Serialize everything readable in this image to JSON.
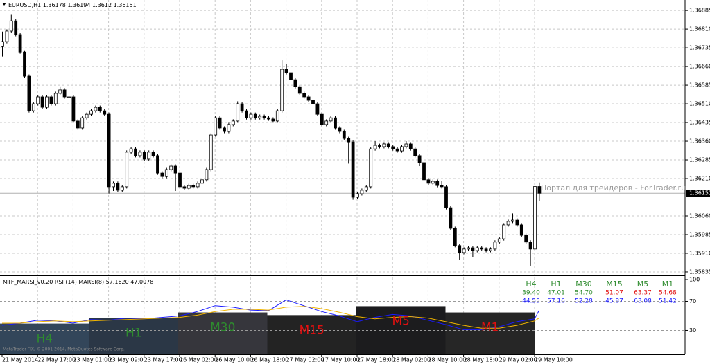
{
  "chart_data": [
    {
      "type": "candlestick",
      "symbol": "EURUSD,H1",
      "open": [
        1.3674,
        1.3676,
        1.36802,
        1.36843,
        1.36788,
        1.36718,
        1.36621,
        1.36482,
        1.3651,
        1.36538,
        1.36496,
        1.36538,
        1.3651,
        1.36552,
        1.36566,
        1.36538,
        1.36538,
        1.36441,
        1.36413,
        1.36454,
        1.36468,
        1.36482,
        1.36496,
        1.36482,
        1.36468,
        1.36177,
        1.36191,
        1.36163,
        1.36177,
        1.36316,
        1.36329,
        1.36302,
        1.36316,
        1.36288,
        1.36316,
        1.36302,
        1.36232,
        1.36218,
        1.36246,
        1.3626,
        1.36232,
        1.36177,
        1.36171,
        1.36182,
        1.36177,
        1.36191,
        1.36205,
        1.36246,
        1.36385,
        1.36454,
        1.36413,
        1.36399,
        1.36427,
        1.36441,
        1.3651,
        1.36482,
        1.36454,
        1.36468,
        1.36454,
        1.3646,
        1.36454,
        1.36449,
        1.36441,
        1.36482,
        1.36649,
        1.36635,
        1.36607,
        1.36579,
        1.36552,
        1.36538,
        1.36524,
        1.3651,
        1.36468,
        1.36427,
        1.36441,
        1.36454,
        1.36413,
        1.36399,
        1.36371,
        1.36357,
        1.36135,
        1.36149,
        1.36163,
        1.36177,
        1.36329,
        1.36343,
        1.36338,
        1.36349,
        1.36338,
        1.36329,
        1.36321,
        1.36338,
        1.36349,
        1.36329,
        1.36302,
        1.36274,
        1.36205,
        1.36191,
        1.36199,
        1.36182,
        1.36177,
        1.36093,
        1.3601,
        1.35941,
        1.35913,
        1.35927,
        1.35932,
        1.35921,
        1.35932,
        1.35927,
        1.35921,
        1.35927,
        1.35955,
        1.35968,
        1.36024,
        1.36038,
        1.36043,
        1.36024,
        1.35982,
        1.35955,
        1.35927,
        1.36178
      ],
      "high": [
        1.368,
        1.36809,
        1.3687,
        1.3685,
        1.36795,
        1.36725,
        1.36628,
        1.36517,
        1.36545,
        1.36545,
        1.36545,
        1.36545,
        1.36559,
        1.3658,
        1.36573,
        1.36545,
        1.36545,
        1.36448,
        1.36461,
        1.36475,
        1.36489,
        1.36503,
        1.36503,
        1.36489,
        1.36475,
        1.36198,
        1.36198,
        1.36184,
        1.36323,
        1.36336,
        1.36336,
        1.36323,
        1.36323,
        1.36323,
        1.36323,
        1.36309,
        1.36239,
        1.36253,
        1.36267,
        1.36267,
        1.36239,
        1.36184,
        1.36189,
        1.36189,
        1.36198,
        1.36212,
        1.36253,
        1.36392,
        1.36461,
        1.36461,
        1.3642,
        1.36434,
        1.36448,
        1.3652,
        1.36517,
        1.36489,
        1.36475,
        1.36475,
        1.36467,
        1.36467,
        1.36461,
        1.36456,
        1.36489,
        1.36685,
        1.3667,
        1.36642,
        1.36614,
        1.36586,
        1.36559,
        1.36545,
        1.36531,
        1.36517,
        1.36475,
        1.36448,
        1.36461,
        1.36461,
        1.3642,
        1.36406,
        1.36378,
        1.36364,
        1.36156,
        1.3617,
        1.36184,
        1.36336,
        1.3636,
        1.3635,
        1.36356,
        1.36356,
        1.36345,
        1.36336,
        1.36345,
        1.3636,
        1.36356,
        1.36336,
        1.36309,
        1.36281,
        1.36212,
        1.36206,
        1.36206,
        1.362,
        1.36184,
        1.361,
        1.36017,
        1.35948,
        1.35934,
        1.35939,
        1.35939,
        1.35939,
        1.35939,
        1.35934,
        1.35934,
        1.35962,
        1.35975,
        1.36031,
        1.36045,
        1.3607,
        1.3605,
        1.36031,
        1.35989,
        1.35962,
        1.362,
        1.36194
      ],
      "low": [
        1.367,
        1.36753,
        1.36795,
        1.36781,
        1.36711,
        1.36614,
        1.36475,
        1.36475,
        1.36503,
        1.36489,
        1.36489,
        1.36503,
        1.36503,
        1.36545,
        1.36531,
        1.36531,
        1.36434,
        1.36406,
        1.36406,
        1.36447,
        1.36461,
        1.36475,
        1.36475,
        1.36461,
        1.3615,
        1.3616,
        1.36156,
        1.36156,
        1.3617,
        1.36309,
        1.36295,
        1.36295,
        1.36281,
        1.36281,
        1.36295,
        1.36225,
        1.36211,
        1.36211,
        1.36239,
        1.3616,
        1.3617,
        1.36164,
        1.36164,
        1.3617,
        1.3617,
        1.36184,
        1.36198,
        1.36239,
        1.36378,
        1.36406,
        1.36392,
        1.36392,
        1.3642,
        1.36434,
        1.36475,
        1.36447,
        1.36447,
        1.36447,
        1.36447,
        1.36447,
        1.36442,
        1.36434,
        1.36434,
        1.36475,
        1.36628,
        1.366,
        1.36572,
        1.36545,
        1.36531,
        1.36517,
        1.36503,
        1.36461,
        1.3642,
        1.3642,
        1.36434,
        1.36406,
        1.36392,
        1.36364,
        1.3627,
        1.36125,
        1.36128,
        1.36142,
        1.36156,
        1.3617,
        1.36322,
        1.36331,
        1.36331,
        1.36331,
        1.36322,
        1.36314,
        1.36314,
        1.36331,
        1.36322,
        1.36295,
        1.3626,
        1.36198,
        1.36184,
        1.36184,
        1.36175,
        1.3617,
        1.36086,
        1.36003,
        1.35934,
        1.35885,
        1.35906,
        1.3592,
        1.35895,
        1.35914,
        1.3592,
        1.35914,
        1.35914,
        1.3592,
        1.35948,
        1.35961,
        1.36017,
        1.36031,
        1.36017,
        1.35975,
        1.35948,
        1.3586,
        1.3592,
        1.3612
      ],
      "close": [
        1.3676,
        1.36802,
        1.36843,
        1.36788,
        1.36718,
        1.36621,
        1.36482,
        1.3651,
        1.36538,
        1.36496,
        1.36538,
        1.3651,
        1.36552,
        1.36566,
        1.36538,
        1.36538,
        1.36441,
        1.36413,
        1.36454,
        1.36468,
        1.36482,
        1.36496,
        1.36482,
        1.36468,
        1.36177,
        1.36191,
        1.36163,
        1.36177,
        1.36316,
        1.36329,
        1.36302,
        1.36316,
        1.36288,
        1.36316,
        1.36302,
        1.36232,
        1.36218,
        1.36246,
        1.3626,
        1.36232,
        1.36177,
        1.36171,
        1.36182,
        1.36177,
        1.36191,
        1.36205,
        1.36246,
        1.36385,
        1.36454,
        1.36413,
        1.36399,
        1.36427,
        1.36441,
        1.3651,
        1.36482,
        1.36454,
        1.36468,
        1.36454,
        1.3646,
        1.36454,
        1.36449,
        1.36441,
        1.36482,
        1.36649,
        1.36635,
        1.36607,
        1.36579,
        1.36552,
        1.36538,
        1.36524,
        1.3651,
        1.36468,
        1.36427,
        1.36441,
        1.36454,
        1.36413,
        1.36399,
        1.36371,
        1.36357,
        1.36135,
        1.36149,
        1.36163,
        1.36177,
        1.36329,
        1.36343,
        1.36338,
        1.36349,
        1.36338,
        1.36329,
        1.36321,
        1.36338,
        1.36349,
        1.36329,
        1.36302,
        1.36274,
        1.36205,
        1.36191,
        1.36199,
        1.36182,
        1.36177,
        1.36093,
        1.3601,
        1.35941,
        1.35913,
        1.35927,
        1.35932,
        1.35921,
        1.35932,
        1.35927,
        1.35921,
        1.35927,
        1.35955,
        1.35968,
        1.36024,
        1.36038,
        1.36043,
        1.36024,
        1.35982,
        1.35955,
        1.35927,
        1.36178,
        1.36151
      ],
      "ylim": [
        1.35821,
        1.36927
      ],
      "yticks": [
        {
          "value": 1.36885,
          "label": "1.36885"
        },
        {
          "value": 1.3681,
          "label": "1.36810"
        },
        {
          "value": 1.36735,
          "label": "1.36735"
        },
        {
          "value": 1.3666,
          "label": "1.36660"
        },
        {
          "value": 1.36585,
          "label": "1.36585"
        },
        {
          "value": 1.3651,
          "label": "1.36510"
        },
        {
          "value": 1.36435,
          "label": "1.36435"
        },
        {
          "value": 1.3636,
          "label": "1.36360"
        },
        {
          "value": 1.36285,
          "label": "1.36285"
        },
        {
          "value": 1.3621,
          "label": "1.36210"
        },
        {
          "value": 1.3606,
          "label": "1.36060"
        },
        {
          "value": 1.35985,
          "label": "1.35985"
        },
        {
          "value": 1.3591,
          "label": "1.35910"
        },
        {
          "value": 1.35835,
          "label": "1.35835"
        }
      ],
      "xticks": [
        {
          "value": 0,
          "label": "21 May 2014"
        },
        {
          "value": 8,
          "label": "22 May 17:00"
        },
        {
          "value": 16,
          "label": "23 May 01:00"
        },
        {
          "value": 24,
          "label": "23 May 09:00"
        },
        {
          "value": 32,
          "label": "23 May 17:00"
        },
        {
          "value": 40,
          "label": "26 May 02:00"
        },
        {
          "value": 48,
          "label": "26 May 10:00"
        },
        {
          "value": 56,
          "label": "26 May 18:00"
        },
        {
          "value": 64,
          "label": "27 May 02:00"
        },
        {
          "value": 72,
          "label": "27 May 10:00"
        },
        {
          "value": 80,
          "label": "27 May 18:00"
        },
        {
          "value": 88,
          "label": "28 May 02:00"
        },
        {
          "value": 96,
          "label": "28 May 10:00"
        },
        {
          "value": 104,
          "label": "28 May 18:00"
        },
        {
          "value": 112,
          "label": "29 May 02:00"
        },
        {
          "value": 120,
          "label": "29 May 10:00"
        }
      ],
      "up_color": "#ffffff",
      "down_color": "#000000",
      "grid": true,
      "watermark": "Портал для трейдеров - ForTrader.ru",
      "copyright": "MetaTrader FIX, © 2001-2014, MetaQuotes Software Corp."
    },
    {
      "type": "line",
      "title": "MTF_MARSI_v0.20",
      "header_values": [
        "57.1620",
        "47.0078"
      ],
      "x": [
        0,
        4,
        8,
        12,
        16,
        20,
        24,
        28,
        32,
        36,
        40,
        44,
        48,
        52,
        56,
        60,
        64,
        68,
        72,
        76,
        80,
        84,
        88,
        92,
        96,
        100,
        104,
        108,
        112,
        116,
        120,
        121
      ],
      "series": [
        {
          "name": "RSI (14)",
          "color": "#1a1aff",
          "values": [
            37,
            40,
            44,
            43,
            40,
            45,
            44,
            47,
            46,
            48,
            50,
            56,
            64,
            62,
            58,
            57,
            72,
            64,
            56,
            50,
            42,
            48,
            52,
            50,
            44,
            38,
            31,
            31,
            35,
            42,
            46,
            57.2
          ]
        },
        {
          "name": "MARSI(8)",
          "color": "#f0b400",
          "values": [
            40,
            40,
            42,
            43,
            42,
            43,
            44,
            45,
            46,
            47,
            48,
            51,
            56,
            59,
            59,
            58,
            62,
            63,
            60,
            55,
            49,
            46,
            48,
            49,
            47,
            42,
            37,
            33,
            33,
            37,
            43,
            47.0
          ]
        }
      ],
      "ylim": [
        -2.9,
        103.8
      ],
      "yticks": [
        100,
        70,
        30
      ],
      "levels": [
        70,
        30
      ],
      "zones": {
        "names": [
          "H4",
          "H1",
          "M30",
          "M15",
          "M5",
          "M1"
        ],
        "name_color": "#2e8b2e",
        "fills": [
          "#33465a",
          "#2b3746",
          "#36363c",
          "#232323",
          "#1c1c1e",
          "#262626"
        ],
        "label_colors": [
          "#2e8b2e",
          "#2e8b2e",
          "#2e8b2e",
          "#e01010",
          "#e01010",
          "#e01010"
        ],
        "values": [
          39.4,
          47.01,
          54.7,
          51.07,
          63.37,
          54.68
        ],
        "value_labels": [
          "39.40",
          "47.01",
          "54.70",
          "51.07",
          "63.37",
          "54.68"
        ],
        "rsi": [
          44.55,
          57.16,
          52.28,
          45.87,
          63.08,
          51.42
        ],
        "rsi_labels": [
          "44.55",
          "57.16",
          "52.28",
          "45.87",
          "63.08",
          "51.42"
        ],
        "rsi_color": "#1a1aff"
      }
    }
  ]
}
